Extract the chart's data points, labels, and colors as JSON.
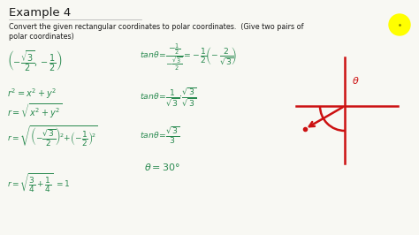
{
  "bg_color": "#f8f8f3",
  "title": "Example 4",
  "subtitle": "Convert the given rectangular coordinates to polar coordinates.  (Give two pairs of",
  "subtitle2": "polar coordinates)",
  "green_color": "#2a8a50",
  "red_color": "#cc1111",
  "black_color": "#1a1a1a",
  "yellow_color": "#ffff00",
  "fig_w": 4.74,
  "fig_h": 2.66,
  "dpi": 100
}
